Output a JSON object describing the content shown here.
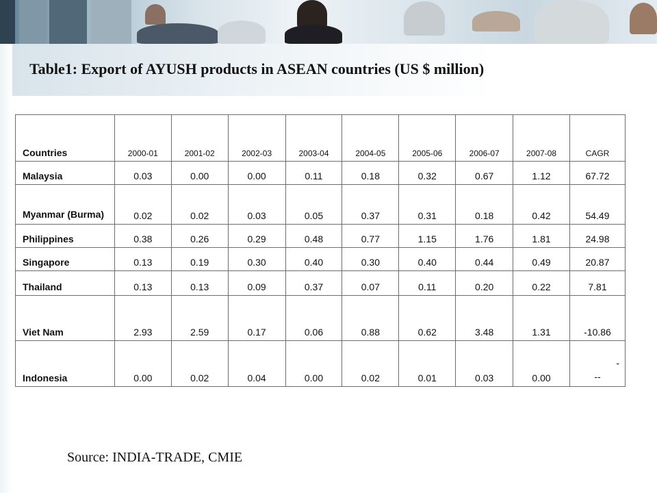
{
  "title": "Table1: Export of AYUSH products in ASEAN countries (US $ million)",
  "table": {
    "headers": [
      "Countries",
      "2000-01",
      "2001-02",
      "2002-03",
      "2003-04",
      "2004-05",
      "2005-06",
      "2006-07",
      "2007-08",
      "CAGR"
    ],
    "rows": [
      {
        "country": "Malaysia",
        "values": [
          "0.03",
          "0.00",
          "0.00",
          "0.11",
          "0.18",
          "0.32",
          "0.67",
          "1.12",
          "67.72"
        ]
      },
      {
        "country": "Myanmar (Burma)",
        "values": [
          "0.02",
          "0.02",
          "0.03",
          "0.05",
          "0.37",
          "0.31",
          "0.18",
          "0.42",
          "54.49"
        ]
      },
      {
        "country": "Philippines",
        "values": [
          "0.38",
          "0.26",
          "0.29",
          "0.48",
          "0.77",
          "1.15",
          "1.76",
          "1.81",
          "24.98"
        ]
      },
      {
        "country": "Singapore",
        "values": [
          "0.13",
          "0.19",
          "0.30",
          "0.40",
          "0.30",
          "0.40",
          "0.44",
          "0.49",
          "20.87"
        ]
      },
      {
        "country": "Thailand",
        "values": [
          "0.13",
          "0.13",
          "0.09",
          "0.37",
          "0.07",
          "0.11",
          "0.20",
          "0.22",
          "7.81"
        ]
      },
      {
        "country": "Viet Nam",
        "values": [
          "2.93",
          "2.59",
          "0.17",
          "0.06",
          "0.88",
          "0.62",
          "3.48",
          "1.31",
          "-10.86"
        ]
      },
      {
        "country": "Indonesia",
        "values": [
          "0.00",
          "0.02",
          "0.04",
          "0.00",
          "0.02",
          "0.01",
          "0.03",
          "0.00"
        ],
        "cagr_lines": [
          "-",
          "--"
        ]
      }
    ]
  },
  "source": "Source: INDIA-TRADE, CMIE"
}
